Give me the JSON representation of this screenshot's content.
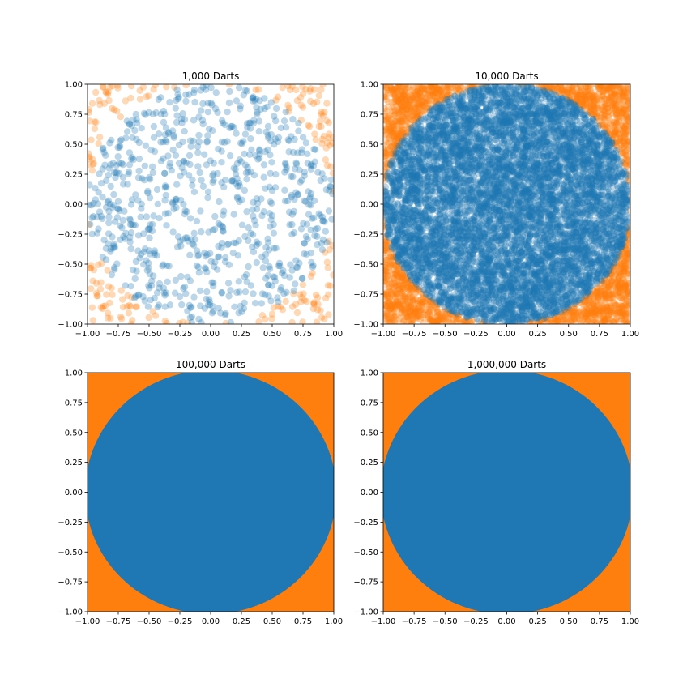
{
  "figure": {
    "background": "#ffffff"
  },
  "colors": {
    "inside": "#1f77b4",
    "outside": "#ff7f0e"
  },
  "chart_data": [
    {
      "type": "scatter",
      "title": "1,000 Darts",
      "darts": 1000,
      "xlim": [
        -1.0,
        1.0
      ],
      "ylim": [
        -1.0,
        1.0
      ],
      "xticks": [
        "−1.00",
        "−0.75",
        "−0.50",
        "−0.25",
        "0.00",
        "0.25",
        "0.50",
        "0.75",
        "1.00"
      ],
      "yticks": [
        "−1.00",
        "−0.75",
        "−0.50",
        "−0.25",
        "0.00",
        "0.25",
        "0.50",
        "0.75",
        "1.00"
      ],
      "series": [
        {
          "role": "inside unit circle",
          "color": "#1f77b4",
          "opacity": 0.3
        },
        {
          "role": "outside unit circle",
          "color": "#ff7f0e",
          "opacity": 0.3
        }
      ],
      "grid": false
    },
    {
      "type": "scatter",
      "title": "10,000 Darts",
      "darts": 10000,
      "xlim": [
        -1.0,
        1.0
      ],
      "ylim": [
        -1.0,
        1.0
      ],
      "xticks": [
        "−1.00",
        "−0.75",
        "−0.50",
        "−0.25",
        "0.00",
        "0.25",
        "0.50",
        "0.75",
        "1.00"
      ],
      "yticks": [
        "−1.00",
        "−0.75",
        "−0.50",
        "−0.25",
        "0.00",
        "0.25",
        "0.50",
        "0.75",
        "1.00"
      ],
      "series": [
        {
          "role": "inside unit circle",
          "color": "#1f77b4",
          "opacity": 0.3
        },
        {
          "role": "outside unit circle",
          "color": "#ff7f0e",
          "opacity": 0.3
        }
      ],
      "grid": false
    },
    {
      "type": "scatter",
      "title": "100,000 Darts",
      "darts": 100000,
      "xlim": [
        -1.0,
        1.0
      ],
      "ylim": [
        -1.0,
        1.0
      ],
      "xticks": [
        "−1.00",
        "−0.75",
        "−0.50",
        "−0.25",
        "0.00",
        "0.25",
        "0.50",
        "0.75",
        "1.00"
      ],
      "yticks": [
        "−1.00",
        "−0.75",
        "−0.50",
        "−0.25",
        "0.00",
        "0.25",
        "0.50",
        "0.75",
        "1.00"
      ],
      "series": [
        {
          "role": "inside unit circle",
          "color": "#1f77b4",
          "opacity": 1.0
        },
        {
          "role": "outside unit circle",
          "color": "#ff7f0e",
          "opacity": 1.0
        }
      ],
      "grid": false
    },
    {
      "type": "scatter",
      "title": "1,000,000 Darts",
      "darts": 1000000,
      "xlim": [
        -1.0,
        1.0
      ],
      "ylim": [
        -1.0,
        1.0
      ],
      "xticks": [
        "−1.00",
        "−0.75",
        "−0.50",
        "−0.25",
        "0.00",
        "0.25",
        "0.50",
        "0.75",
        "1.00"
      ],
      "yticks": [
        "−1.00",
        "−0.75",
        "−0.50",
        "−0.25",
        "0.00",
        "0.25",
        "0.50",
        "0.75",
        "1.00"
      ],
      "series": [
        {
          "role": "inside unit circle",
          "color": "#1f77b4",
          "opacity": 1.0
        },
        {
          "role": "outside unit circle",
          "color": "#ff7f0e",
          "opacity": 1.0
        }
      ],
      "grid": false
    }
  ]
}
